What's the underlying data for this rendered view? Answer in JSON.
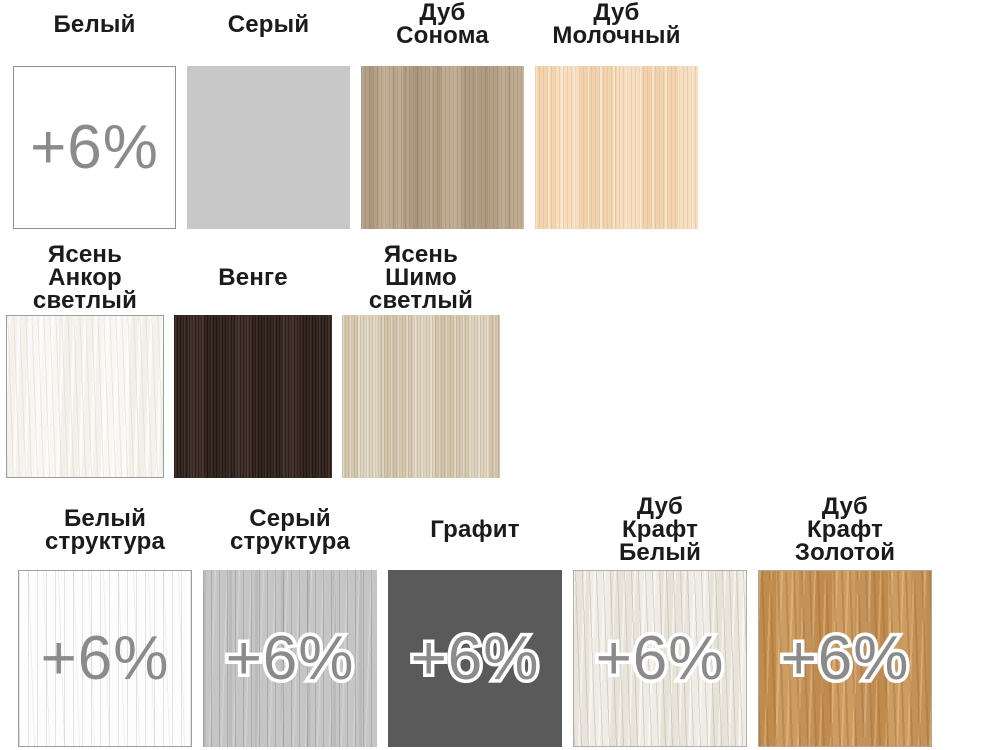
{
  "colors": {
    "label_text": "#1b1b1b",
    "surcharge_text": "#8b8b8b",
    "surcharge_outline": "#ffffff",
    "white": "#ffffff",
    "gray": "#c8c8c8",
    "sonoma_oak": "#b9a58b",
    "milk_oak": "#f3d8b6",
    "ash_ankor_light": "#f6f4f0",
    "wenge": "#3b2b26",
    "ash_shimo_light": "#d9cdb7",
    "white_structure": "#fdfdfd",
    "gray_structure": "#c5c5c5",
    "graphite": "#5a5a5a",
    "oak_craft_white": "#ebe8e1",
    "oak_craft_gold": "#c79459"
  },
  "rows": [
    {
      "cells": [
        {
          "label": [
            "Белый"
          ],
          "badge": "+6%"
        },
        {
          "label": [
            "Серый"
          ]
        },
        {
          "label": [
            "Дуб",
            "Сонома"
          ]
        },
        {
          "label": [
            "Дуб",
            "Молочный"
          ]
        }
      ]
    },
    {
      "cells": [
        {
          "label": [
            "Ясень",
            "Анкор",
            "светлый"
          ]
        },
        {
          "label": [
            "Венге"
          ]
        },
        {
          "label": [
            "Ясень",
            "Шимо",
            "светлый"
          ]
        }
      ]
    },
    {
      "cells": [
        {
          "label": [
            "Белый",
            "структура"
          ],
          "badge": "+6%"
        },
        {
          "label": [
            "Серый",
            "структура"
          ],
          "badge": "+6%"
        },
        {
          "label": [
            "Графит"
          ],
          "badge": "+6%"
        },
        {
          "label": [
            "Дуб",
            "Крафт",
            "Белый"
          ],
          "badge": "+6%"
        },
        {
          "label": [
            "Дуб",
            "Крафт",
            "Золотой"
          ],
          "badge": "+6%"
        }
      ]
    }
  ]
}
